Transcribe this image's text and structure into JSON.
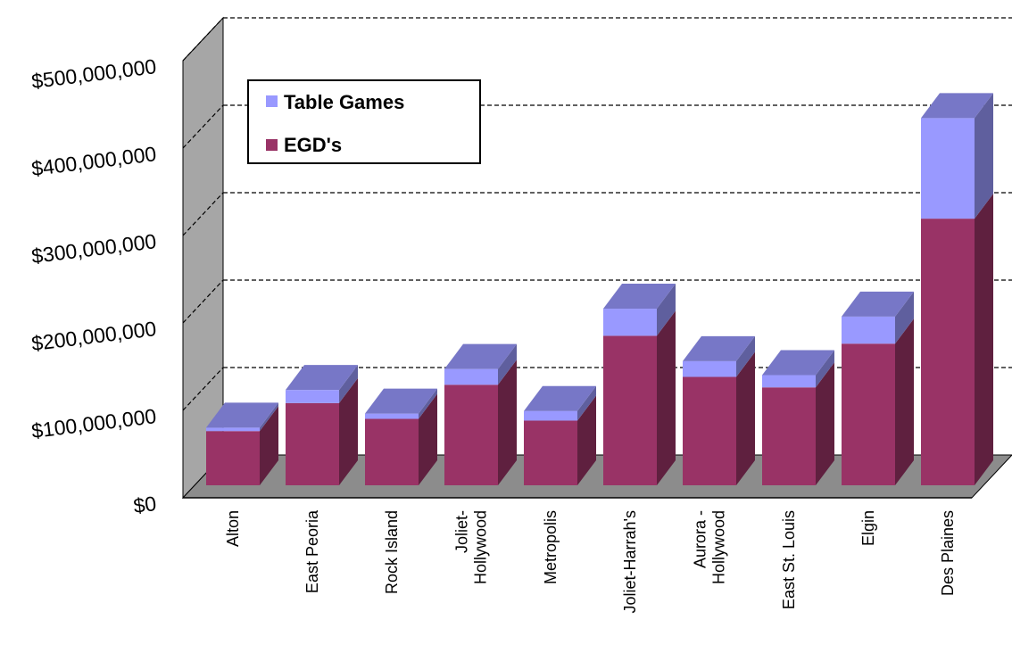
{
  "chart_data": {
    "type": "bar",
    "stacked": true,
    "three_d": true,
    "categories": [
      [
        "Alton"
      ],
      [
        "East Peoria"
      ],
      [
        "Rock Island"
      ],
      [
        "Joliet-",
        "Hollywood"
      ],
      [
        "Metropolis"
      ],
      [
        "Joliet-Harrah's"
      ],
      [
        "Aurora -",
        "Hollywood"
      ],
      [
        "East St. Louis"
      ],
      [
        "Elgin"
      ],
      [
        "Des Plaines"
      ]
    ],
    "series": [
      {
        "name": "EGD's",
        "color": "#993366",
        "values": [
          62000000,
          94000000,
          76000000,
          115000000,
          74000000,
          171000000,
          124000000,
          112000000,
          162000000,
          305000000
        ]
      },
      {
        "name": "Table Games",
        "color": "#9999ff",
        "values": [
          4000000,
          15000000,
          6000000,
          18000000,
          11000000,
          31000000,
          18000000,
          14000000,
          31000000,
          115000000
        ]
      }
    ],
    "ylim": [
      0,
      500000000
    ],
    "yticks": [
      0,
      100000000,
      200000000,
      300000000,
      400000000,
      500000000
    ],
    "ytick_labels": [
      "$0",
      "$100,000,000",
      "$200,000,000",
      "$300,000,000",
      "$400,000,000",
      "$500,000,000"
    ],
    "grid": true,
    "legend_position": "top-left",
    "title": "",
    "xlabel": "",
    "ylabel": ""
  }
}
